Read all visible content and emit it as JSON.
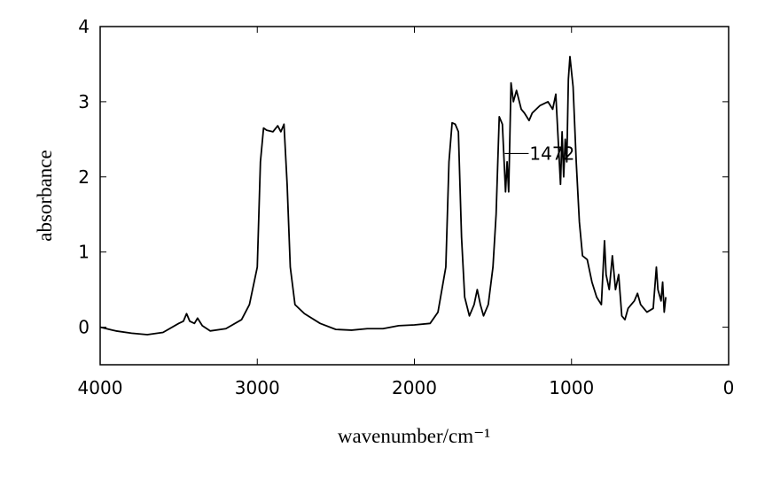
{
  "chart_data": {
    "type": "line",
    "xlabel": "wavenumber/cm⁻¹",
    "ylabel": "absorbance",
    "xlim": [
      4000,
      0
    ],
    "ylim": [
      -0.5,
      4
    ],
    "xticks": [
      4000,
      3000,
      2000,
      1000,
      0
    ],
    "yticks": [
      0,
      1,
      2,
      3,
      4
    ],
    "grid": false,
    "color": "#000000",
    "annotation": {
      "text": "1472",
      "x": 1425,
      "y": 2.31
    },
    "x": [
      4000,
      3900,
      3800,
      3700,
      3600,
      3500,
      3470,
      3450,
      3430,
      3400,
      3380,
      3350,
      3300,
      3200,
      3100,
      3050,
      3000,
      2980,
      2960,
      2940,
      2900,
      2870,
      2850,
      2830,
      2810,
      2790,
      2760,
      2700,
      2600,
      2500,
      2400,
      2300,
      2200,
      2100,
      2000,
      1900,
      1850,
      1800,
      1780,
      1760,
      1740,
      1720,
      1700,
      1680,
      1650,
      1620,
      1600,
      1580,
      1560,
      1530,
      1500,
      1480,
      1460,
      1440,
      1420,
      1410,
      1400,
      1385,
      1370,
      1350,
      1320,
      1300,
      1270,
      1250,
      1200,
      1150,
      1120,
      1100,
      1080,
      1070,
      1060,
      1050,
      1040,
      1030,
      1020,
      1010,
      1000,
      990,
      970,
      950,
      930,
      900,
      870,
      840,
      810,
      790,
      780,
      760,
      740,
      720,
      700,
      680,
      660,
      640,
      600,
      580,
      560,
      520,
      480,
      460,
      450,
      430,
      420,
      410,
      400
    ],
    "values": [
      0,
      -0.05,
      -0.08,
      -0.1,
      -0.07,
      0.05,
      0.08,
      0.18,
      0.08,
      0.05,
      0.12,
      0.02,
      -0.05,
      -0.02,
      0.1,
      0.3,
      0.8,
      2.2,
      2.65,
      2.62,
      2.6,
      2.68,
      2.6,
      2.7,
      1.9,
      0.8,
      0.3,
      0.18,
      0.05,
      -0.03,
      -0.04,
      -0.02,
      -0.02,
      0.02,
      0.03,
      0.05,
      0.2,
      0.8,
      2.2,
      2.72,
      2.7,
      2.6,
      1.2,
      0.4,
      0.15,
      0.3,
      0.5,
      0.3,
      0.15,
      0.3,
      0.8,
      1.5,
      2.8,
      2.7,
      1.8,
      2.2,
      1.8,
      3.25,
      3.0,
      3.15,
      2.9,
      2.85,
      2.75,
      2.85,
      2.95,
      3.0,
      2.9,
      3.1,
      2.3,
      1.9,
      2.6,
      2.0,
      2.5,
      2.2,
      3.3,
      3.6,
      3.4,
      3.2,
      2.2,
      1.4,
      0.95,
      0.9,
      0.6,
      0.4,
      0.3,
      1.15,
      0.7,
      0.5,
      0.95,
      0.5,
      0.7,
      0.15,
      0.1,
      0.25,
      0.35,
      0.45,
      0.3,
      0.2,
      0.25,
      0.8,
      0.5,
      0.35,
      0.6,
      0.2,
      0.4
    ]
  }
}
